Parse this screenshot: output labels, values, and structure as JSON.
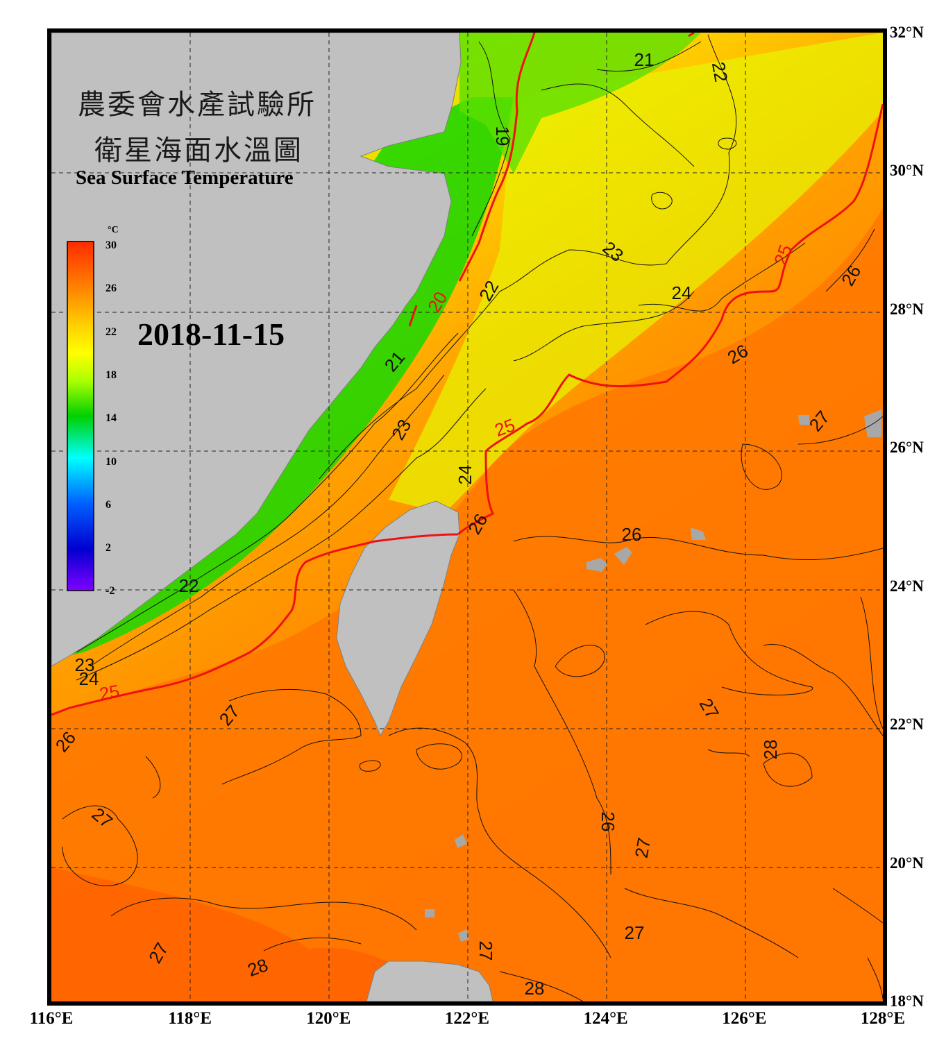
{
  "title": {
    "line1": "農委會水產試驗所",
    "line2": "衛星海面水溫圖",
    "english": "Sea Surface Temperature"
  },
  "date": "2018-11-15",
  "colorbar": {
    "unit": "°C",
    "ticks": [
      "30",
      "26",
      "22",
      "18",
      "14",
      "10",
      "6",
      "2",
      "-2"
    ],
    "min": -2,
    "max": 30,
    "colors": [
      "#ff2a00",
      "#ff7a00",
      "#ffd000",
      "#ffff00",
      "#aaff00",
      "#00d000",
      "#00ffff",
      "#0060ff",
      "#0000d0",
      "#8000ff"
    ]
  },
  "axes": {
    "lon_labels": [
      "116°E",
      "118°E",
      "120°E",
      "122°E",
      "124°E",
      "126°E",
      "128°E"
    ],
    "lat_labels": [
      "32°N",
      "30°N",
      "28°N",
      "26°N",
      "24°N",
      "22°N",
      "20°N",
      "18°N"
    ],
    "lon_range": [
      116,
      128
    ],
    "lat_range": [
      18,
      32
    ]
  },
  "contour_labels": [
    {
      "text": "21",
      "color": "black"
    },
    {
      "text": "22",
      "color": "black"
    },
    {
      "text": "19",
      "color": "black"
    },
    {
      "text": "20",
      "color": "red"
    },
    {
      "text": "22",
      "color": "black"
    },
    {
      "text": "21",
      "color": "black"
    },
    {
      "text": "23",
      "color": "black"
    },
    {
      "text": "24",
      "color": "black"
    },
    {
      "text": "25",
      "color": "red"
    },
    {
      "text": "26",
      "color": "black"
    },
    {
      "text": "23",
      "color": "black"
    },
    {
      "text": "25",
      "color": "red"
    },
    {
      "text": "24",
      "color": "black"
    },
    {
      "text": "26",
      "color": "black"
    },
    {
      "text": "26",
      "color": "black"
    },
    {
      "text": "27",
      "color": "black"
    },
    {
      "text": "22",
      "color": "black"
    },
    {
      "text": "23",
      "color": "black"
    },
    {
      "text": "24",
      "color": "black"
    },
    {
      "text": "25",
      "color": "red"
    },
    {
      "text": "26",
      "color": "black"
    },
    {
      "text": "27",
      "color": "black"
    },
    {
      "text": "27",
      "color": "black"
    },
    {
      "text": "27",
      "color": "black"
    },
    {
      "text": "28",
      "color": "black"
    },
    {
      "text": "26",
      "color": "black"
    },
    {
      "text": "27",
      "color": "black"
    },
    {
      "text": "27",
      "color": "black"
    },
    {
      "text": "27",
      "color": "black"
    },
    {
      "text": "28",
      "color": "black"
    },
    {
      "text": "27",
      "color": "black"
    },
    {
      "text": "28",
      "color": "black"
    },
    {
      "text": "26",
      "color": "black"
    }
  ]
}
